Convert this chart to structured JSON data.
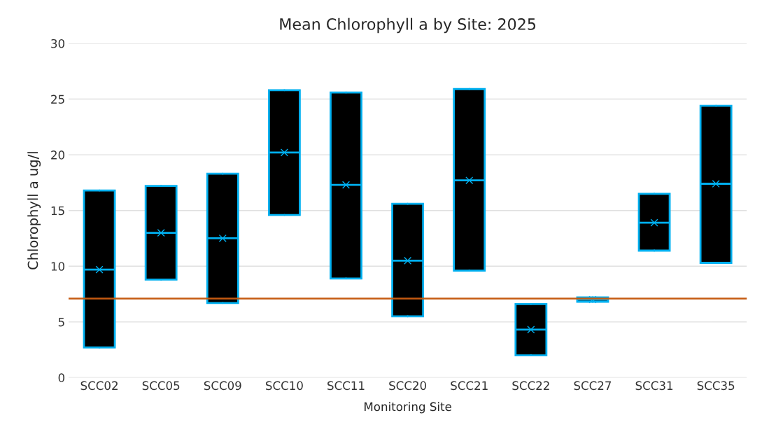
{
  "chart_data": {
    "type": "box",
    "title": "Mean Chlorophyll a by Site: 2025",
    "xlabel": "Monitoring Site",
    "ylabel": "Chlorophyll a ug/l",
    "categories": [
      "SCC02",
      "SCC05",
      "SCC09",
      "SCC10",
      "SCC11",
      "SCC20",
      "SCC21",
      "SCC22",
      "SCC27",
      "SCC31",
      "SCC35"
    ],
    "boxes": [
      {
        "low": 2.7,
        "q1": 2.7,
        "median": 9.7,
        "q3": 16.8,
        "high": 16.8,
        "mean": 9.7
      },
      {
        "low": 8.8,
        "q1": 8.8,
        "median": 13.0,
        "q3": 17.2,
        "high": 17.2,
        "mean": 13.0
      },
      {
        "low": 6.7,
        "q1": 6.7,
        "median": 12.5,
        "q3": 18.3,
        "high": 18.3,
        "mean": 12.5
      },
      {
        "low": 14.6,
        "q1": 14.6,
        "median": 20.2,
        "q3": 25.8,
        "high": 25.8,
        "mean": 20.2
      },
      {
        "low": 8.9,
        "q1": 8.9,
        "median": 17.3,
        "q3": 25.6,
        "high": 25.6,
        "mean": 17.3
      },
      {
        "low": 5.5,
        "q1": 5.5,
        "median": 10.5,
        "q3": 15.6,
        "high": 15.6,
        "mean": 10.5
      },
      {
        "low": 9.6,
        "q1": 9.6,
        "median": 17.7,
        "q3": 25.9,
        "high": 25.9,
        "mean": 17.7
      },
      {
        "low": 2.0,
        "q1": 2.0,
        "median": 4.3,
        "q3": 6.6,
        "high": 6.6,
        "mean": 4.3
      },
      {
        "low": 6.8,
        "q1": 6.8,
        "median": 7.0,
        "q3": 7.2,
        "high": 7.2,
        "mean": 7.0
      },
      {
        "low": 11.4,
        "q1": 11.4,
        "median": 13.9,
        "q3": 16.5,
        "high": 16.5,
        "mean": 13.9
      },
      {
        "low": 10.3,
        "q1": 10.3,
        "median": 17.4,
        "q3": 24.4,
        "high": 24.4,
        "mean": 17.4
      }
    ],
    "color": "#000000",
    "marker": "cross",
    "ylim": [
      0,
      30
    ],
    "yticks": [
      0,
      5,
      10,
      15,
      20,
      25,
      30
    ],
    "grid": "y",
    "ref_lines": [
      {
        "axis": "y",
        "value": 7.1,
        "color": "#c55a11"
      }
    ]
  }
}
